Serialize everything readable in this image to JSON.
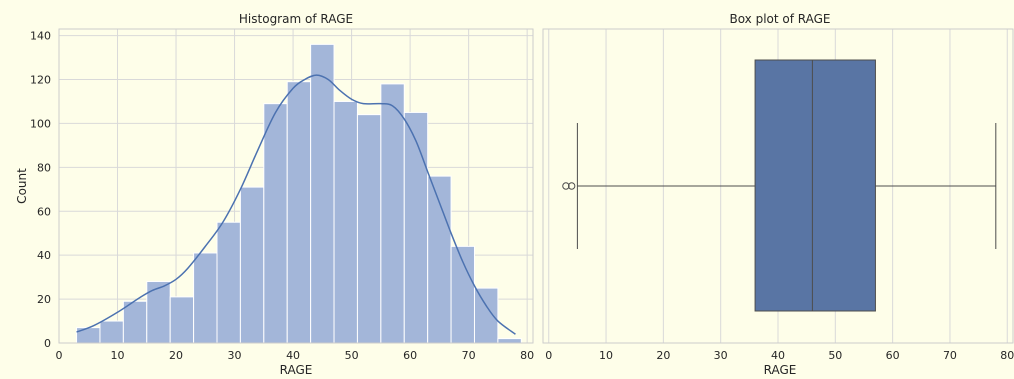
{
  "chart_data": [
    {
      "type": "bar",
      "title": "Histogram of RAGE",
      "xlabel": "RAGE",
      "ylabel": "Count",
      "xlim": [
        0,
        81
      ],
      "ylim": [
        0,
        143
      ],
      "xticks": [
        0,
        10,
        20,
        30,
        40,
        50,
        60,
        70,
        80
      ],
      "yticks": [
        0,
        20,
        40,
        60,
        80,
        100,
        120,
        140
      ],
      "grid": true,
      "bar_color": "#a3b6d9",
      "kde_color": "#4c72b0",
      "bins": [
        {
          "x0": 3,
          "x1": 7,
          "count": 7
        },
        {
          "x0": 7,
          "x1": 11,
          "count": 10
        },
        {
          "x0": 11,
          "x1": 15,
          "count": 19
        },
        {
          "x0": 15,
          "x1": 19,
          "count": 28
        },
        {
          "x0": 19,
          "x1": 23,
          "count": 21
        },
        {
          "x0": 23,
          "x1": 27,
          "count": 41
        },
        {
          "x0": 27,
          "x1": 31,
          "count": 55
        },
        {
          "x0": 31,
          "x1": 35,
          "count": 71
        },
        {
          "x0": 35,
          "x1": 39,
          "count": 109
        },
        {
          "x0": 39,
          "x1": 43,
          "count": 119
        },
        {
          "x0": 43,
          "x1": 47,
          "count": 136
        },
        {
          "x0": 47,
          "x1": 51,
          "count": 110
        },
        {
          "x0": 51,
          "x1": 55,
          "count": 104
        },
        {
          "x0": 55,
          "x1": 59,
          "count": 118
        },
        {
          "x0": 59,
          "x1": 63,
          "count": 105
        },
        {
          "x0": 63,
          "x1": 67,
          "count": 76
        },
        {
          "x0": 67,
          "x1": 71,
          "count": 44
        },
        {
          "x0": 71,
          "x1": 75,
          "count": 25
        },
        {
          "x0": 75,
          "x1": 79,
          "count": 2
        }
      ],
      "kde": [
        [
          3,
          5
        ],
        [
          6,
          8
        ],
        [
          10,
          14
        ],
        [
          14,
          21
        ],
        [
          16,
          24
        ],
        [
          18,
          26
        ],
        [
          20,
          29
        ],
        [
          22,
          34
        ],
        [
          25,
          44
        ],
        [
          28,
          55
        ],
        [
          31,
          70
        ],
        [
          34,
          88
        ],
        [
          37,
          105
        ],
        [
          40,
          116
        ],
        [
          42,
          120
        ],
        [
          44,
          122
        ],
        [
          46,
          120
        ],
        [
          48,
          115
        ],
        [
          50,
          111
        ],
        [
          52,
          109
        ],
        [
          55,
          109
        ],
        [
          57,
          108
        ],
        [
          59,
          102
        ],
        [
          61,
          92
        ],
        [
          63,
          78
        ],
        [
          65,
          64
        ],
        [
          67,
          50
        ],
        [
          69,
          37
        ],
        [
          71,
          26
        ],
        [
          73,
          17
        ],
        [
          75,
          10
        ],
        [
          78,
          4
        ]
      ]
    },
    {
      "type": "box",
      "title": "Box plot of RAGE",
      "xlabel": "RAGE",
      "xlim": [
        -1,
        81
      ],
      "xticks": [
        0,
        10,
        20,
        30,
        40,
        50,
        60,
        70,
        80
      ],
      "grid": true,
      "box_color": "#5975a4",
      "whisker_low": 5,
      "q1": 36,
      "median": 46,
      "q3": 57,
      "whisker_high": 78,
      "outliers": [
        3,
        4
      ]
    }
  ]
}
